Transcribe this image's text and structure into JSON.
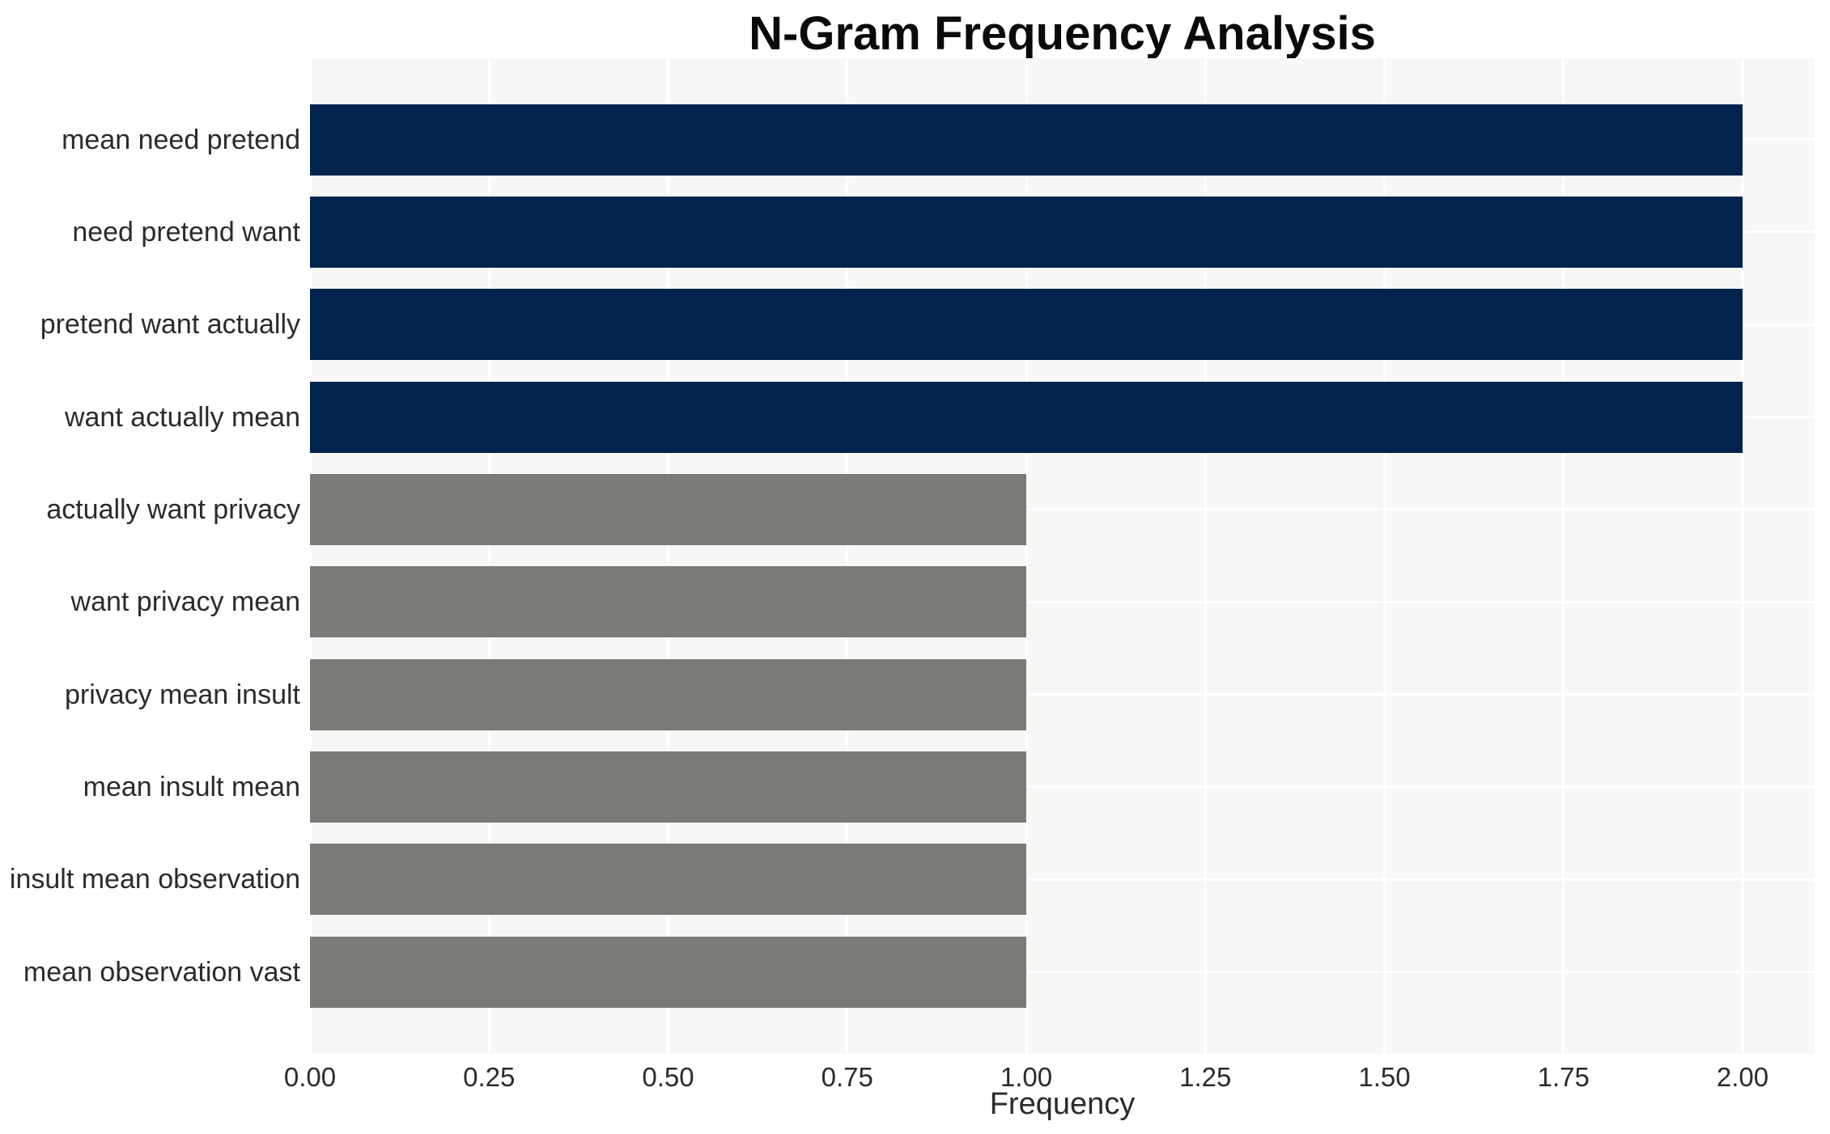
{
  "chart_data": {
    "type": "bar",
    "orientation": "horizontal",
    "title": "N-Gram Frequency Analysis",
    "xlabel": "Frequency",
    "ylabel": "",
    "categories": [
      "mean need pretend",
      "need pretend want",
      "pretend want actually",
      "want actually mean",
      "actually want privacy",
      "want privacy mean",
      "privacy mean insult",
      "mean insult mean",
      "insult mean observation",
      "mean observation vast"
    ],
    "values": [
      2,
      2,
      2,
      2,
      1,
      1,
      1,
      1,
      1,
      1
    ],
    "bar_colors": [
      "#02234E",
      "#02234E",
      "#02234E",
      "#02234E",
      "#7A7A77",
      "#7A7A77",
      "#7A7A77",
      "#7A7A77",
      "#7A7A77",
      "#7A7A77"
    ],
    "xlim": [
      0,
      2.1
    ],
    "xticks": [
      0,
      0.25,
      0.5,
      0.75,
      1.0,
      1.25,
      1.5,
      1.75,
      2.0
    ],
    "xtick_labels": [
      "0.00",
      "0.25",
      "0.50",
      "0.75",
      "1.00",
      "1.25",
      "1.50",
      "1.75",
      "2.00"
    ],
    "grid": true,
    "grid_color": "#FFFFFF",
    "plot_background": "#F7F7F6",
    "figure_background": "#FFFFFF",
    "text_color": "#2B2B2B",
    "title_color": "#0A0A0A",
    "legend": false
  }
}
